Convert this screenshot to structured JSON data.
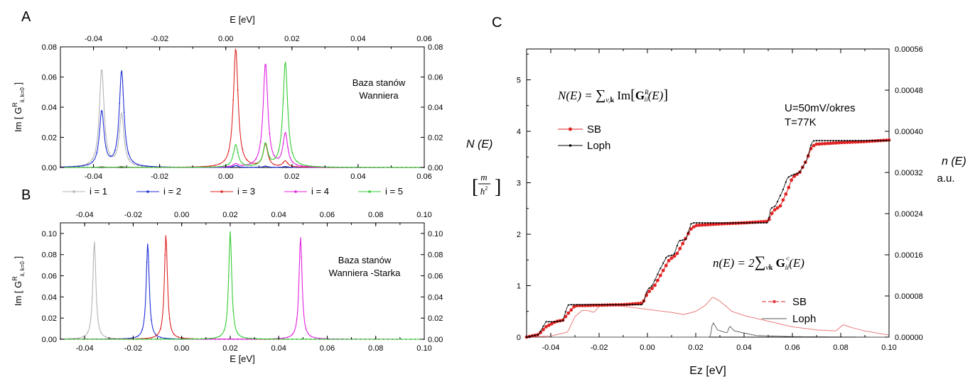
{
  "chart_data": [
    {
      "type": "line",
      "panel": "A",
      "title": "",
      "xlabel": "E [eV]",
      "ylabel": "Im [ G^R_{ii, k=0} ]",
      "xlim": [
        -0.05,
        0.06
      ],
      "ylim": [
        0,
        0.08
      ],
      "x_ticks": [
        "-0.04",
        "-0.02",
        "0.00",
        "0.02",
        "0.04",
        "0.06"
      ],
      "y_ticks": [
        "0.00",
        "0.02",
        "0.04",
        "0.06",
        "0.08"
      ],
      "annotation": [
        "Baza stanów",
        "Wanniera"
      ],
      "series": [
        {
          "name": "i = 1",
          "color": "#b4b4b4",
          "peaks": [
            [
              -0.0375,
              0.065
            ],
            [
              -0.0315,
              0.035
            ],
            [
              0.003,
              0.0012
            ],
            [
              0.012,
              0.0008
            ],
            [
              0.018,
              0.0006
            ]
          ]
        },
        {
          "name": "i = 2",
          "color": "#1f2fd6",
          "peaks": [
            [
              -0.0375,
              0.037
            ],
            [
              -0.0315,
              0.064
            ],
            [
              0.003,
              0.0012
            ],
            [
              0.012,
              0.0008
            ],
            [
              0.018,
              0.0006
            ]
          ]
        },
        {
          "name": "i = 3",
          "color": "#e02222",
          "peaks": [
            [
              -0.0375,
              0.0005
            ],
            [
              -0.0315,
              0.0006
            ],
            [
              0.003,
              0.079
            ],
            [
              0.012,
              0.015
            ],
            [
              0.018,
              0.004
            ]
          ]
        },
        {
          "name": "i = 4",
          "color": "#e020e0",
          "peaks": [
            [
              -0.0375,
              0.0004
            ],
            [
              -0.0315,
              0.0005
            ],
            [
              0.003,
              0.002
            ],
            [
              0.012,
              0.069
            ],
            [
              0.018,
              0.022
            ]
          ]
        },
        {
          "name": "i = 5",
          "color": "#33cc33",
          "peaks": [
            [
              -0.0375,
              0.0003
            ],
            [
              -0.0315,
              0.0004
            ],
            [
              0.003,
              0.015
            ],
            [
              0.012,
              0.015
            ],
            [
              0.018,
              0.07
            ]
          ]
        }
      ]
    },
    {
      "type": "line",
      "panel": "B",
      "title": "",
      "xlabel": "E [eV]",
      "ylabel": "Im [ G^R_{ii, k=0} ]",
      "xlim": [
        -0.05,
        0.1
      ],
      "ylim": [
        0,
        0.11
      ],
      "x_ticks": [
        "-0.04",
        "-0.02",
        "0.00",
        "0.02",
        "0.04",
        "0.06",
        "0.08",
        "0.10"
      ],
      "y_ticks": [
        "0.00",
        "0.02",
        "0.04",
        "0.06",
        "0.08",
        "0.10"
      ],
      "annotation": [
        "Baza stanów",
        "Wanniera -Starka"
      ],
      "series": [
        {
          "name": "i = 1",
          "color": "#b4b4b4",
          "peaks": [
            [
              -0.036,
              0.093
            ]
          ]
        },
        {
          "name": "i = 2",
          "color": "#1f2fd6",
          "peaks": [
            [
              -0.014,
              0.091
            ]
          ]
        },
        {
          "name": "i = 3",
          "color": "#e02222",
          "peaks": [
            [
              -0.0065,
              0.099
            ]
          ]
        },
        {
          "name": "i = 4",
          "color": "#e020e0",
          "peaks": [
            [
              0.049,
              0.097
            ]
          ]
        },
        {
          "name": "i = 5",
          "color": "#33cc33",
          "peaks": [
            [
              0.02,
              0.102
            ]
          ]
        }
      ]
    },
    {
      "type": "line",
      "panel": "C",
      "title": "",
      "xlabel": "Ez [eV]",
      "ylabel_left": "N (E)",
      "ylabel_left_units": "[m/ħ²]",
      "ylabel_right": "n (E)",
      "ylabel_right_units": "a.u.",
      "xlim": [
        -0.05,
        0.1
      ],
      "ylim_left": [
        0,
        5.6
      ],
      "ylim_right": [
        0,
        0.00056
      ],
      "x_ticks": [
        "-0.04",
        "-0.02",
        "0.00",
        "0.02",
        "0.04",
        "0.06",
        "0.08",
        "0.10"
      ],
      "y_ticks_left": [
        "0",
        "1",
        "2",
        "3",
        "4",
        "5"
      ],
      "y_ticks_right": [
        "0.00000",
        "0.00008",
        "0.00016",
        "0.00024",
        "0.00032",
        "0.00040",
        "0.00048",
        "0.00056"
      ],
      "formula_N": "N(E) = ∑v,k Im[GRii(E)]",
      "formula_n": "n(E) = 2∑vk G<ii(E)",
      "conditions": [
        "U=50mV/okres",
        "T=77K"
      ],
      "legend_upper": [
        {
          "name": "SB",
          "color": "#e02222"
        },
        {
          "name": "Loph",
          "color": "#000000"
        }
      ],
      "legend_lower": [
        {
          "name": "SB",
          "color": "#e02222"
        },
        {
          "name": "Loph",
          "color": "#000000"
        }
      ],
      "N_SB": {
        "x": [
          -0.05,
          -0.045,
          -0.042,
          -0.038,
          -0.035,
          -0.033,
          -0.03,
          -0.02,
          -0.01,
          -0.002,
          0.0,
          0.003,
          0.006,
          0.009,
          0.012,
          0.015,
          0.018,
          0.02,
          0.03,
          0.04,
          0.05,
          0.052,
          0.055,
          0.058,
          0.06,
          0.063,
          0.066,
          0.068,
          0.07,
          0.08,
          0.09,
          0.1
        ],
        "y": [
          0.0,
          0.05,
          0.2,
          0.3,
          0.33,
          0.45,
          0.61,
          0.62,
          0.63,
          0.66,
          0.85,
          1.0,
          1.25,
          1.5,
          1.6,
          1.85,
          2.1,
          2.17,
          2.2,
          2.22,
          2.25,
          2.45,
          2.55,
          2.85,
          3.1,
          3.2,
          3.45,
          3.7,
          3.75,
          3.78,
          3.8,
          3.83
        ]
      },
      "N_Loph": {
        "x": [
          -0.05,
          -0.045,
          -0.042,
          -0.038,
          -0.035,
          -0.033,
          -0.032,
          -0.02,
          -0.01,
          -0.002,
          0.0,
          0.002,
          0.005,
          0.008,
          0.011,
          0.013,
          0.016,
          0.018,
          0.019,
          0.03,
          0.04,
          0.05,
          0.051,
          0.053,
          0.056,
          0.058,
          0.06,
          0.063,
          0.066,
          0.068,
          0.069,
          0.08,
          0.09,
          0.1
        ],
        "y": [
          0.0,
          0.05,
          0.3,
          0.3,
          0.32,
          0.62,
          0.63,
          0.63,
          0.63,
          0.63,
          0.92,
          1.0,
          1.3,
          1.57,
          1.6,
          1.87,
          1.9,
          2.2,
          2.22,
          2.22,
          2.22,
          2.22,
          2.5,
          2.55,
          2.85,
          3.1,
          3.15,
          3.2,
          3.45,
          3.78,
          3.82,
          3.82,
          3.82,
          3.82
        ]
      },
      "n_SB": {
        "x": [
          -0.05,
          -0.04,
          -0.033,
          -0.03,
          -0.027,
          -0.025,
          -0.022,
          -0.02,
          -0.015,
          -0.01,
          0.0,
          0.01,
          0.015,
          0.02,
          0.024,
          0.027,
          0.03,
          0.035,
          0.04,
          0.06,
          0.07,
          0.078,
          0.081,
          0.085,
          0.09,
          0.1
        ],
        "y": [
          0.0,
          2e-06,
          1e-05,
          4e-05,
          5.2e-05,
          5.2e-05,
          4.8e-05,
          6e-05,
          6.4e-05,
          6e-05,
          5.4e-05,
          4.8e-05,
          4.4e-05,
          5e-05,
          6.2e-05,
          7.8e-05,
          7e-05,
          5e-05,
          4.2e-05,
          2e-05,
          1.4e-05,
          1.2e-05,
          2.4e-05,
          1.8e-05,
          1.2e-05,
          4e-06
        ]
      },
      "n_Loph": {
        "x": [
          -0.05,
          0.026,
          0.027,
          0.029,
          0.033,
          0.034,
          0.036,
          0.045,
          0.06,
          0.08,
          0.1
        ],
        "y": [
          0.0,
          0.0,
          3e-05,
          1.4e-05,
          8e-06,
          2.2e-05,
          1.2e-05,
          3e-06,
          1e-06,
          5e-07,
          0.0
        ]
      }
    }
  ],
  "panel_letters": {
    "a": "A",
    "b": "B",
    "c": "C"
  },
  "legend_panel_ab": [
    "i = 1",
    "i = 2",
    "i = 3",
    "i = 4",
    "i = 5"
  ]
}
